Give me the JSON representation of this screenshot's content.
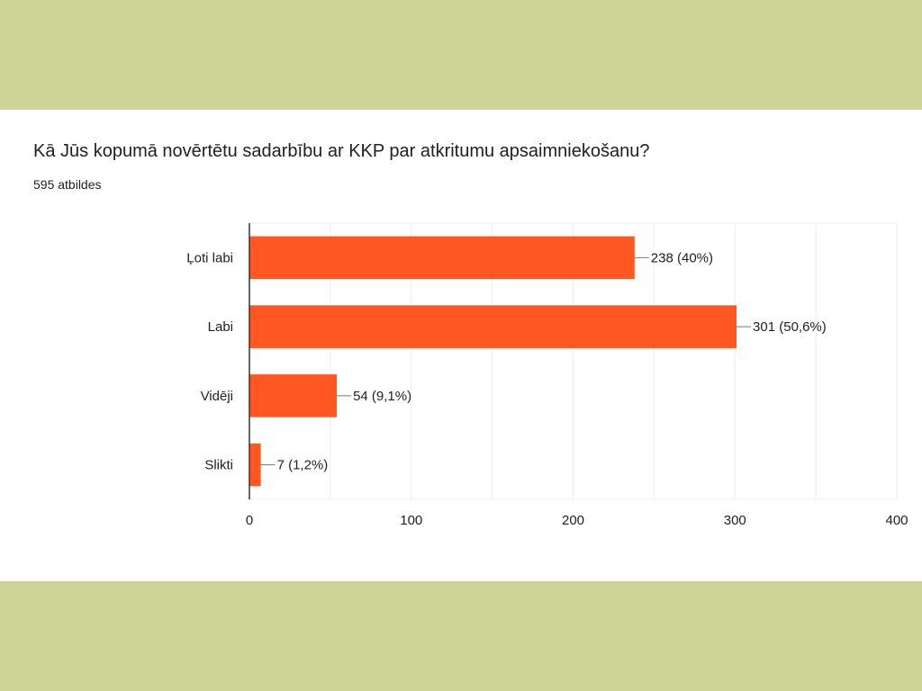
{
  "question": {
    "title": "Kā Jūs kopumā novērtētu sadarbību ar KKP par atkritumu apsaimniekošanu?",
    "responses": "595 atbildes"
  },
  "colors": {
    "band": "#ccd596",
    "panel": "#ffffff",
    "bar": "#ff5722",
    "text": "#202124",
    "grid": "#eeeeee",
    "axis": "#333333"
  },
  "chart_data": {
    "type": "bar",
    "orientation": "horizontal",
    "categories": [
      "Ļoti labi",
      "Labi",
      "Vidēji",
      "Slikti"
    ],
    "values": [
      238,
      301,
      54,
      7
    ],
    "data_labels": [
      "238 (40%)",
      "301 (50,6%)",
      "54 (9,1%)",
      "7 (1,2%)"
    ],
    "xlim": [
      0,
      400
    ],
    "x_ticks": [
      0,
      100,
      200,
      300,
      400
    ],
    "grid": true,
    "legend": "none"
  }
}
